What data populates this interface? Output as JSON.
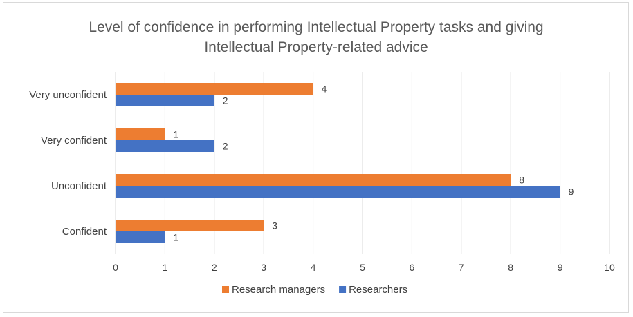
{
  "chart_data": {
    "type": "bar",
    "orientation": "horizontal",
    "title": "Level of confidence in performing Intellectual Property tasks and giving Intellectual Property-related advice",
    "title_lines": [
      "Level of confidence in performing Intellectual Property tasks and giving",
      "Intellectual Property-related advice"
    ],
    "categories": [
      "Confident",
      "Unconfident",
      "Very confident",
      "Very unconfident"
    ],
    "series": [
      {
        "name": "Researchers",
        "values": [
          1,
          9,
          2,
          2
        ],
        "color": "#4472C4"
      },
      {
        "name": "Research managers",
        "values": [
          3,
          8,
          1,
          4
        ],
        "color": "#ED7D31"
      }
    ],
    "xlim": [
      0,
      10
    ],
    "x_ticks": [
      "0",
      "1",
      "2",
      "3",
      "4",
      "5",
      "6",
      "7",
      "8",
      "9",
      "10"
    ],
    "xlabel": "",
    "ylabel": "",
    "grid": true,
    "data_labels": true,
    "legend_position": "bottom",
    "legend_order": [
      "Research managers",
      "Researchers"
    ]
  }
}
